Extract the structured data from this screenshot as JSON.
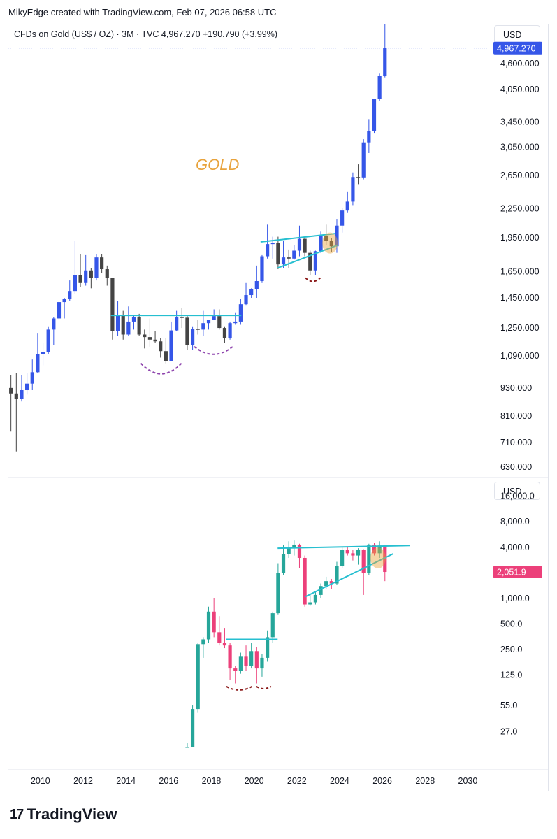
{
  "header": {
    "credit": "MikyEdge created with TradingView.com, Feb 07, 2026 06:58 UTC"
  },
  "symbol_line": "CFDs on Gold (US$ / OZ) · 3M · TVC  4,967.270  +190.790 (+3.99%)",
  "currency_top": "USD",
  "currency_bottom": "USD",
  "brand": {
    "name": "TradingView"
  },
  "colors": {
    "up_top": "#3556e8",
    "down_top": "#444444",
    "up_bottom": "#26a69a",
    "down_bottom": "#ec407a",
    "trend": "#26bfd0",
    "annotation": "#e8a33c",
    "cup": "#8e44ad",
    "cup2": "#8b1a1a"
  },
  "chart_data": [
    {
      "type": "candlestick",
      "title": "CFDs on Gold (US$ / OZ)",
      "annotation": "GOLD",
      "scale": "log",
      "x_range": [
        2008.5,
        2031
      ],
      "y_range": [
        600,
        5600
      ],
      "y_ticks": [
        630,
        710,
        810,
        930,
        1090,
        1250,
        1450,
        1650,
        1950,
        2250,
        2650,
        3050,
        3450,
        4050,
        4600
      ],
      "y_tick_labels": [
        "630.000",
        "710.000",
        "810.000",
        "930.000",
        "1,090.000",
        "1,250.000",
        "1,450.000",
        "1,650.000",
        "1,950.000",
        "2,250.000",
        "2,650.000",
        "3,050.000",
        "3,450.000",
        "4,050.000",
        "4,600.000"
      ],
      "last_price_label": "4,967.270",
      "last_price": 4967.27,
      "candles": [
        [
          2008.62,
          930,
          990,
          750,
          905
        ],
        [
          2008.87,
          905,
          1000,
          680,
          880
        ],
        [
          2009.12,
          880,
          990,
          870,
          920
        ],
        [
          2009.37,
          920,
          1000,
          900,
          950
        ],
        [
          2009.62,
          950,
          1070,
          920,
          1005
        ],
        [
          2009.87,
          1005,
          1220,
          1000,
          1100
        ],
        [
          2010.12,
          1100,
          1160,
          1040,
          1110
        ],
        [
          2010.37,
          1110,
          1260,
          1100,
          1240
        ],
        [
          2010.62,
          1240,
          1320,
          1150,
          1310
        ],
        [
          2010.87,
          1310,
          1430,
          1300,
          1420
        ],
        [
          2011.12,
          1420,
          1450,
          1310,
          1440
        ],
        [
          2011.37,
          1440,
          1580,
          1430,
          1500
        ],
        [
          2011.62,
          1500,
          1920,
          1480,
          1620
        ],
        [
          2011.87,
          1620,
          1800,
          1530,
          1560
        ],
        [
          2012.12,
          1560,
          1790,
          1540,
          1660
        ],
        [
          2012.37,
          1660,
          1680,
          1520,
          1600
        ],
        [
          2012.62,
          1600,
          1800,
          1580,
          1770
        ],
        [
          2012.87,
          1770,
          1800,
          1640,
          1670
        ],
        [
          2013.12,
          1670,
          1700,
          1540,
          1600
        ],
        [
          2013.37,
          1600,
          1600,
          1180,
          1230
        ],
        [
          2013.62,
          1230,
          1430,
          1200,
          1330
        ],
        [
          2013.87,
          1330,
          1360,
          1180,
          1210
        ],
        [
          2014.12,
          1210,
          1390,
          1200,
          1290
        ],
        [
          2014.37,
          1290,
          1330,
          1240,
          1320
        ],
        [
          2014.62,
          1320,
          1340,
          1200,
          1210
        ],
        [
          2014.87,
          1210,
          1240,
          1130,
          1195
        ],
        [
          2015.12,
          1195,
          1310,
          1140,
          1180
        ],
        [
          2015.37,
          1180,
          1230,
          1160,
          1170
        ],
        [
          2015.62,
          1170,
          1190,
          1080,
          1115
        ],
        [
          2015.87,
          1115,
          1190,
          1050,
          1060
        ],
        [
          2016.12,
          1060,
          1290,
          1060,
          1235
        ],
        [
          2016.37,
          1235,
          1360,
          1230,
          1320
        ],
        [
          2016.62,
          1320,
          1380,
          1250,
          1315
        ],
        [
          2016.87,
          1315,
          1330,
          1120,
          1150
        ],
        [
          2017.12,
          1150,
          1260,
          1120,
          1245
        ],
        [
          2017.37,
          1245,
          1300,
          1210,
          1240
        ],
        [
          2017.62,
          1240,
          1360,
          1200,
          1280
        ],
        [
          2017.87,
          1280,
          1300,
          1240,
          1300
        ],
        [
          2018.12,
          1300,
          1370,
          1300,
          1325
        ],
        [
          2018.37,
          1325,
          1370,
          1240,
          1250
        ],
        [
          2018.62,
          1250,
          1260,
          1160,
          1190
        ],
        [
          2018.87,
          1190,
          1290,
          1180,
          1280
        ],
        [
          2019.12,
          1280,
          1350,
          1270,
          1290
        ],
        [
          2019.37,
          1290,
          1440,
          1270,
          1405
        ],
        [
          2019.62,
          1405,
          1560,
          1400,
          1470
        ],
        [
          2019.87,
          1470,
          1520,
          1450,
          1515
        ],
        [
          2020.12,
          1515,
          1700,
          1450,
          1575
        ],
        [
          2020.37,
          1575,
          1790,
          1560,
          1780
        ],
        [
          2020.62,
          1780,
          2080,
          1760,
          1890
        ],
        [
          2020.87,
          1890,
          1960,
          1760,
          1900
        ],
        [
          2021.12,
          1900,
          1960,
          1670,
          1710
        ],
        [
          2021.37,
          1710,
          1920,
          1680,
          1770
        ],
        [
          2021.62,
          1770,
          1840,
          1680,
          1760
        ],
        [
          2021.87,
          1760,
          1880,
          1750,
          1830
        ],
        [
          2022.12,
          1830,
          2070,
          1780,
          1940
        ],
        [
          2022.37,
          1940,
          1960,
          1780,
          1810
        ],
        [
          2022.62,
          1810,
          1830,
          1620,
          1660
        ],
        [
          2022.87,
          1660,
          1830,
          1620,
          1825
        ],
        [
          2023.12,
          1825,
          2010,
          1810,
          1970
        ],
        [
          2023.37,
          1970,
          2080,
          1880,
          1920
        ],
        [
          2023.62,
          1920,
          1950,
          1820,
          1870
        ],
        [
          2023.87,
          1870,
          2140,
          1810,
          2070
        ],
        [
          2024.12,
          2070,
          2260,
          2000,
          2230
        ],
        [
          2024.37,
          2230,
          2450,
          2210,
          2330
        ],
        [
          2024.62,
          2330,
          2690,
          2290,
          2630
        ],
        [
          2024.87,
          2630,
          2800,
          2540,
          2625
        ],
        [
          2025.12,
          2625,
          3170,
          2600,
          3120
        ],
        [
          2025.37,
          3120,
          3500,
          2960,
          3300
        ],
        [
          2025.62,
          3300,
          3870,
          3270,
          3860
        ],
        [
          2025.87,
          3860,
          4380,
          3830,
          4330
        ],
        [
          2026.12,
          4330,
          5600,
          4300,
          4967
        ]
      ],
      "trend_lines": [
        {
          "from": [
            2013.3,
            1330
          ],
          "to": [
            2019.4,
            1330
          ]
        },
        {
          "from": [
            2020.3,
            1910
          ],
          "to": [
            2023.8,
            1990
          ]
        },
        {
          "from": [
            2021.1,
            1680
          ],
          "to": [
            2023.9,
            1880
          ]
        }
      ],
      "cups": [
        {
          "from": [
            2014.7,
            1050
          ],
          "to": [
            2016.6,
            1050
          ],
          "depth": 30
        },
        {
          "from": [
            2017.2,
            1140
          ],
          "to": [
            2019.0,
            1140
          ],
          "depth": 22
        },
        {
          "from": [
            2022.4,
            1600
          ],
          "to": [
            2023.1,
            1600
          ],
          "depth": 10
        }
      ],
      "highlight": {
        "x": 2023.55,
        "y": 1900
      }
    },
    {
      "type": "candlestick",
      "scale": "log",
      "x_range": [
        2008.5,
        2031
      ],
      "y_range": [
        18,
        26000
      ],
      "y_ticks": [
        27,
        55,
        125,
        250,
        500,
        1000,
        4000,
        8000,
        16000
      ],
      "y_tick_labels": [
        "27.0",
        "55.0",
        "125.0",
        "250.0",
        "500.0",
        "1,000.0",
        "4,000.0",
        "8,000.0",
        "16,000.0"
      ],
      "last_price_label": "2,051.9",
      "last_price": 2051.9,
      "candles": [
        [
          2016.87,
          16,
          20,
          15,
          18
        ],
        [
          2017.12,
          18,
          55,
          18,
          50
        ],
        [
          2017.37,
          50,
          300,
          45,
          290
        ],
        [
          2017.62,
          290,
          350,
          200,
          330
        ],
        [
          2017.87,
          330,
          800,
          300,
          700
        ],
        [
          2018.12,
          700,
          1000,
          350,
          400
        ],
        [
          2018.37,
          400,
          620,
          280,
          300
        ],
        [
          2018.62,
          300,
          450,
          260,
          280
        ],
        [
          2018.87,
          280,
          300,
          110,
          150
        ],
        [
          2019.12,
          150,
          160,
          100,
          140
        ],
        [
          2019.37,
          140,
          230,
          130,
          210
        ],
        [
          2019.62,
          210,
          280,
          140,
          160
        ],
        [
          2019.87,
          160,
          300,
          150,
          240
        ],
        [
          2020.12,
          240,
          270,
          100,
          150
        ],
        [
          2020.37,
          150,
          220,
          120,
          200
        ],
        [
          2020.62,
          200,
          420,
          180,
          350
        ],
        [
          2020.87,
          350,
          700,
          300,
          670
        ],
        [
          2021.12,
          670,
          2600,
          650,
          2000
        ],
        [
          2021.37,
          2000,
          4300,
          1900,
          3300
        ],
        [
          2021.62,
          3300,
          4700,
          3000,
          4000
        ],
        [
          2021.87,
          4000,
          4800,
          3200,
          4300
        ],
        [
          2022.12,
          4300,
          4400,
          2300,
          3000
        ],
        [
          2022.37,
          3000,
          3200,
          800,
          850
        ],
        [
          2022.62,
          850,
          1100,
          820,
          900
        ],
        [
          2022.87,
          900,
          1200,
          850,
          1100
        ],
        [
          2023.12,
          1100,
          1500,
          1000,
          1400
        ],
        [
          2023.37,
          1400,
          1800,
          1300,
          1600
        ],
        [
          2023.62,
          1600,
          1700,
          1300,
          1500
        ],
        [
          2023.87,
          1500,
          2700,
          1450,
          2400
        ],
        [
          2024.12,
          2400,
          4000,
          2300,
          3700
        ],
        [
          2024.37,
          3700,
          4100,
          3200,
          3400
        ],
        [
          2024.62,
          3400,
          3700,
          2800,
          3200
        ],
        [
          2024.87,
          3200,
          3900,
          2500,
          3700
        ],
        [
          2025.12,
          3700,
          3800,
          1100,
          2000
        ],
        [
          2025.37,
          2000,
          4400,
          1900,
          4300
        ],
        [
          2025.62,
          4300,
          4500,
          3200,
          3400
        ],
        [
          2025.87,
          3400,
          4700,
          3000,
          4200
        ],
        [
          2026.12,
          4200,
          4300,
          1600,
          2052
        ]
      ],
      "trend_lines": [
        {
          "from": [
            2021.1,
            3900
          ],
          "to": [
            2027.3,
            4200
          ]
        },
        {
          "from": [
            2022.4,
            1050
          ],
          "to": [
            2026.5,
            3350
          ]
        },
        {
          "from": [
            2018.7,
            330
          ],
          "to": [
            2021.1,
            330
          ]
        }
      ],
      "cups": [
        {
          "from": [
            2018.7,
            92
          ],
          "to": [
            2019.9,
            92
          ],
          "depth": 10
        },
        {
          "from": [
            2020.1,
            92
          ],
          "to": [
            2020.8,
            92
          ],
          "depth": 6
        }
      ],
      "highlight": {
        "x": 2025.8,
        "y": 3000
      }
    }
  ],
  "x_axis": {
    "ticks": [
      2010,
      2012,
      2014,
      2016,
      2018,
      2020,
      2022,
      2024,
      2026,
      2028,
      2030
    ],
    "labels": [
      "2010",
      "2012",
      "2014",
      "2016",
      "2018",
      "2020",
      "2022",
      "2024",
      "2026",
      "2028",
      "2030"
    ]
  }
}
